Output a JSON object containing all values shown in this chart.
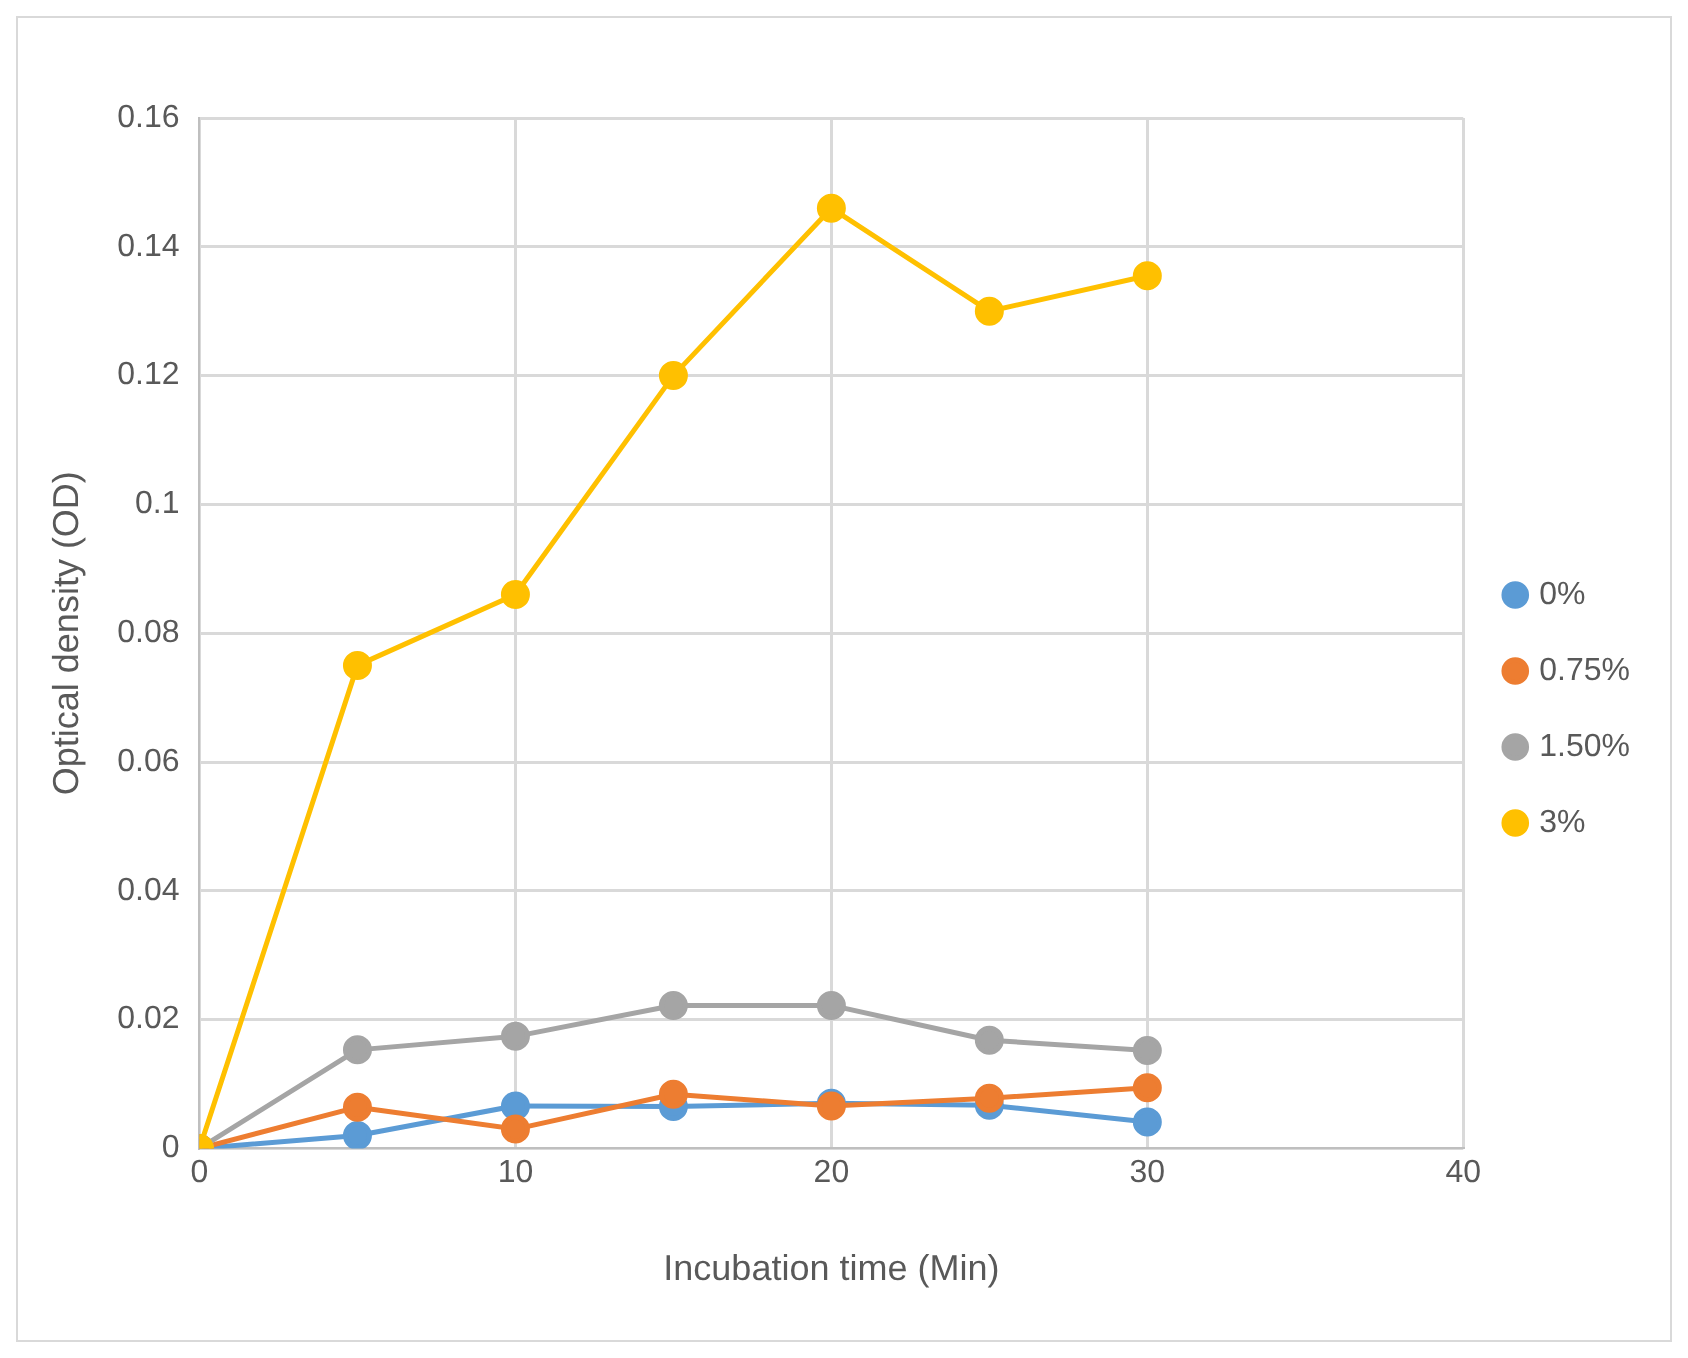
{
  "chart_data": {
    "type": "line",
    "xlabel": "Incubation time (Min)",
    "ylabel": "Optical density (OD)",
    "x": [
      0,
      5,
      10,
      15,
      20,
      25,
      30
    ],
    "series": [
      {
        "name": "0%",
        "color": "#5b9bd5",
        "values": [
          0,
          0.002,
          0.0066,
          0.0065,
          0.007,
          0.0067,
          0.0041
        ]
      },
      {
        "name": "0.75%",
        "color": "#ed7d31",
        "values": [
          0,
          0.0064,
          0.003,
          0.0084,
          0.0066,
          0.0078,
          0.0094
        ]
      },
      {
        "name": "1.50%",
        "color": "#a5a5a5",
        "values": [
          0,
          0.0153,
          0.0174,
          0.0222,
          0.0222,
          0.0168,
          0.0152
        ]
      },
      {
        "name": "3%",
        "color": "#ffc000",
        "values": [
          0,
          0.075,
          0.086,
          0.12,
          0.146,
          0.13,
          0.1355
        ]
      }
    ],
    "xlim": [
      0,
      40
    ],
    "xticks": [
      0,
      10,
      20,
      30,
      40
    ],
    "ylim": [
      0,
      0.16
    ],
    "yticks": [
      0,
      0.02,
      0.04,
      0.06,
      0.08,
      0.1,
      0.12,
      0.14,
      0.16
    ],
    "grid": true,
    "legend": "right",
    "marker": "circle",
    "line_style": "solid"
  }
}
